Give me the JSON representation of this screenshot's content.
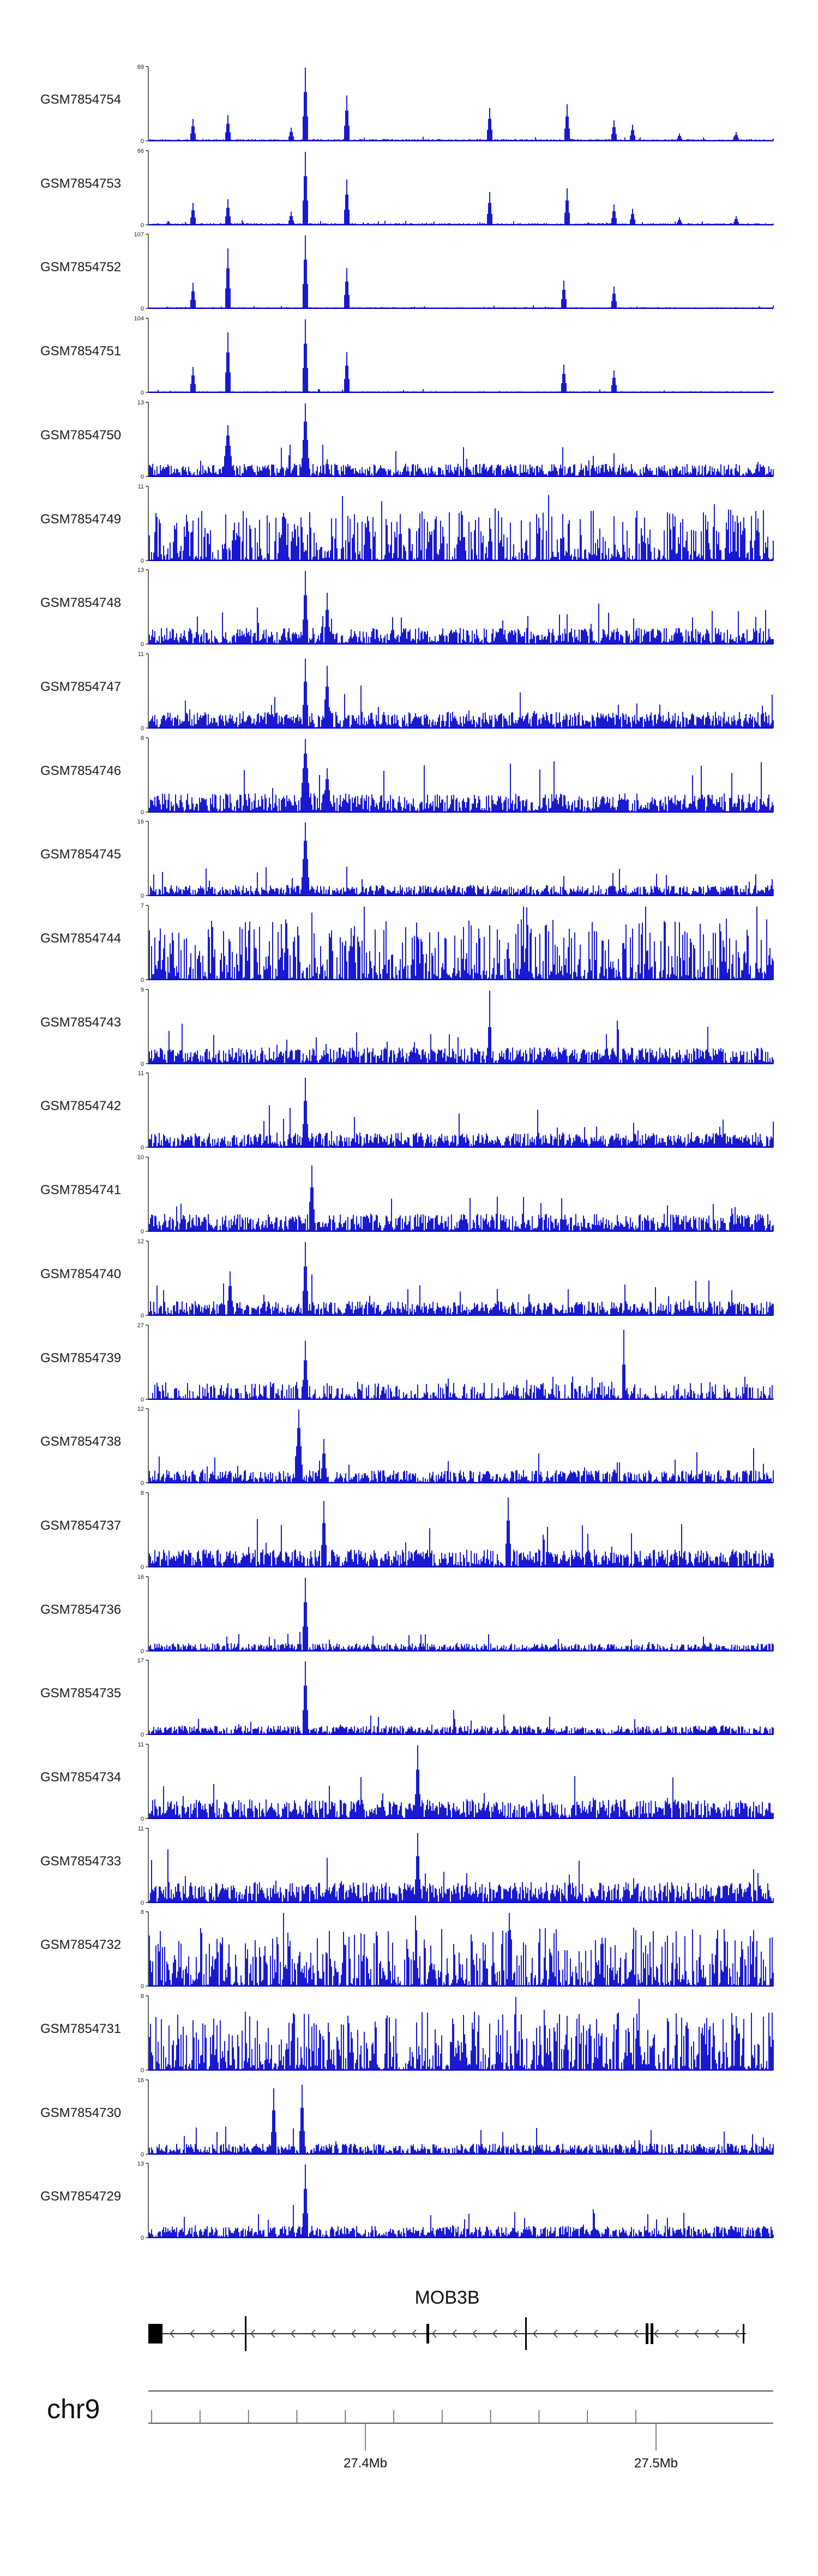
{
  "chart_data": {
    "type": "area",
    "title": "",
    "region": {
      "chromosome": "chr9",
      "x_ticks": [
        "27.4Mb",
        "27.5Mb"
      ]
    },
    "color": "#0000cc",
    "tracks": [
      {
        "name": "GSM7854754",
        "ymin": "0",
        "ymax": "69"
      },
      {
        "name": "GSM7854753",
        "ymin": "0",
        "ymax": "66"
      },
      {
        "name": "GSM7854752",
        "ymin": "0",
        "ymax": "107"
      },
      {
        "name": "GSM7854751",
        "ymin": "0",
        "ymax": "104"
      },
      {
        "name": "GSM7854750",
        "ymin": "0",
        "ymax": "13"
      },
      {
        "name": "GSM7854749",
        "ymin": "0",
        "ymax": "11"
      },
      {
        "name": "GSM7854748",
        "ymin": "0",
        "ymax": "13"
      },
      {
        "name": "GSM7854747",
        "ymin": "0",
        "ymax": "11"
      },
      {
        "name": "GSM7854746",
        "ymin": "0",
        "ymax": "8"
      },
      {
        "name": "GSM7854745",
        "ymin": "0",
        "ymax": "16"
      },
      {
        "name": "GSM7854744",
        "ymin": "0",
        "ymax": "7"
      },
      {
        "name": "GSM7854743",
        "ymin": "0",
        "ymax": "9"
      },
      {
        "name": "GSM7854742",
        "ymin": "0",
        "ymax": "11"
      },
      {
        "name": "GSM7854741",
        "ymin": "0",
        "ymax": "10"
      },
      {
        "name": "GSM7854740",
        "ymin": "0",
        "ymax": "12"
      },
      {
        "name": "GSM7854739",
        "ymin": "0",
        "ymax": "27"
      },
      {
        "name": "GSM7854738",
        "ymin": "0",
        "ymax": "12"
      },
      {
        "name": "GSM7854737",
        "ymin": "0",
        "ymax": "8"
      },
      {
        "name": "GSM7854736",
        "ymin": "0",
        "ymax": "16"
      },
      {
        "name": "GSM7854735",
        "ymin": "0",
        "ymax": "17"
      },
      {
        "name": "GSM7854734",
        "ymin": "0",
        "ymax": "11"
      },
      {
        "name": "GSM7854733",
        "ymin": "0",
        "ymax": "11"
      },
      {
        "name": "GSM7854732",
        "ymin": "0",
        "ymax": "8"
      },
      {
        "name": "GSM7854731",
        "ymin": "0",
        "ymax": "8"
      },
      {
        "name": "GSM7854730",
        "ymin": "0",
        "ymax": "16"
      },
      {
        "name": "GSM7854729",
        "ymin": "0",
        "ymax": "13"
      }
    ],
    "gene": {
      "name": "MOB3B",
      "strand": "-"
    }
  }
}
